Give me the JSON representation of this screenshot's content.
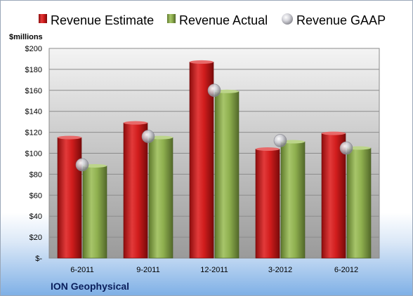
{
  "colors": {
    "estimate": "#cc1a1a",
    "actual": "#8fb04f",
    "gaap": "#b8b8c0"
  },
  "chart_data": {
    "type": "bar",
    "title": "",
    "company": "ION Geophysical",
    "ylabel": "$millions",
    "xlabel": "",
    "categories": [
      "6-2011",
      "9-2011",
      "12-2011",
      "3-2012",
      "6-2012"
    ],
    "series": [
      {
        "name": "Revenue Estimate",
        "kind": "bar",
        "values": [
          115,
          129,
          187,
          104,
          119
        ]
      },
      {
        "name": "Revenue Actual",
        "kind": "bar",
        "values": [
          88,
          115,
          159,
          111,
          105
        ]
      },
      {
        "name": "Revenue GAAP",
        "kind": "point",
        "values": [
          89,
          116,
          160,
          112,
          105
        ]
      }
    ],
    "ylim": [
      0,
      200
    ],
    "yticks": [
      0,
      20,
      40,
      60,
      80,
      100,
      120,
      140,
      160,
      180,
      200
    ],
    "ytick_labels": [
      "$-",
      "$20",
      "$40",
      "$60",
      "$80",
      "$100",
      "$120",
      "$140",
      "$160",
      "$180",
      "$200"
    ],
    "grid": true,
    "legend_position": "top"
  }
}
